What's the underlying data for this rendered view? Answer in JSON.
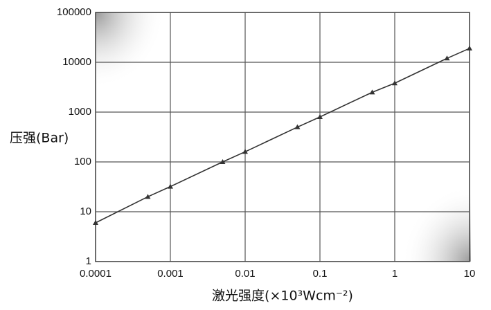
{
  "chart_data": {
    "type": "line",
    "x_label": "激光强度(×10³Wcm⁻²)",
    "y_label": "压强(Bar)",
    "x": [
      0.0001,
      0.0005,
      0.001,
      0.005,
      0.01,
      0.05,
      0.1,
      0.5,
      1,
      5,
      10
    ],
    "values": [
      6,
      20,
      32,
      100,
      160,
      500,
      800,
      2500,
      3800,
      12000,
      19000
    ],
    "color": "#333333",
    "log_x": true,
    "log_y": true,
    "xlim": [
      0.0001,
      10
    ],
    "xticks": [
      0.0001,
      0.001,
      0.01,
      0.1,
      1,
      10
    ],
    "ylim": [
      1,
      100000
    ],
    "yticks": [
      1,
      10,
      100,
      1000,
      10000,
      100000
    ],
    "grid": true
  }
}
